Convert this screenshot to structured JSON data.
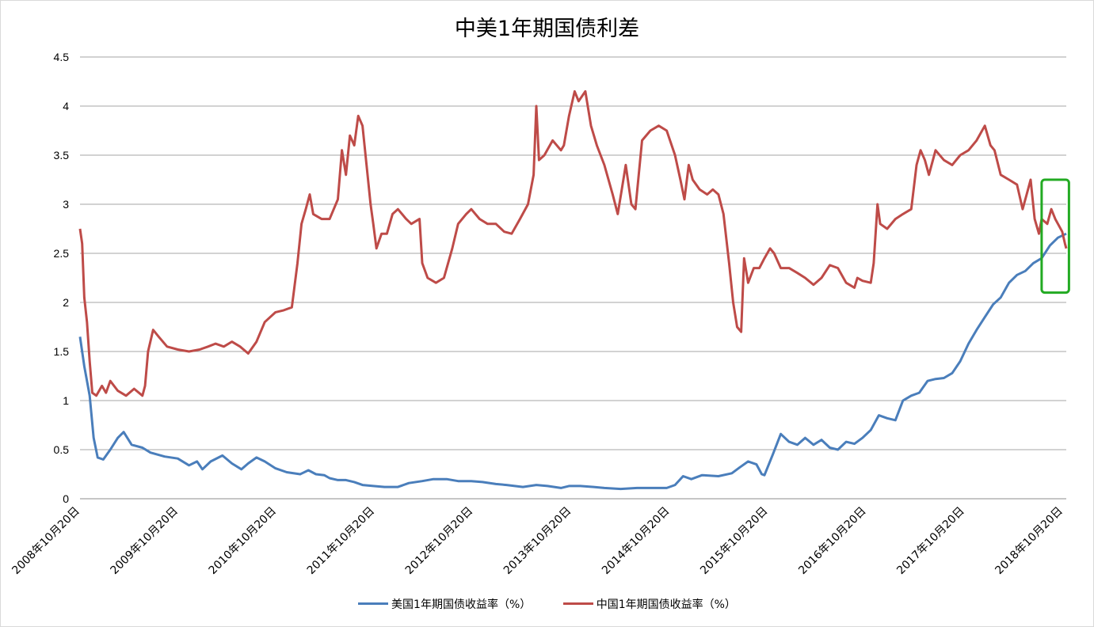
{
  "chart_data": {
    "type": "line",
    "title": "中美1年期国债利差",
    "xlabel": "",
    "ylabel": "",
    "ylim": [
      0,
      4.5
    ],
    "yticks": [
      "0",
      "0.5",
      "1",
      "1.5",
      "2",
      "2.5",
      "3",
      "3.5",
      "4",
      "4.5"
    ],
    "x_range": [
      "2008-10-20",
      "2018-11-20"
    ],
    "x_tick_labels": [
      "2008年10月20日",
      "2009年10月20日",
      "2010年10月20日",
      "2011年10月20日",
      "2012年10月20日",
      "2013年10月20日",
      "2014年10月20日",
      "2015年10月20日",
      "2016年10月20日",
      "2017年10月20日",
      "2018年10月20日"
    ],
    "grid": true,
    "legend_position": "bottom",
    "series": [
      {
        "name": "美国1年期国债收益率（%）",
        "color": "#4a7ebb",
        "points": [
          [
            "2008-10-20",
            1.65
          ],
          [
            "2008-11-05",
            1.35
          ],
          [
            "2008-11-25",
            1.05
          ],
          [
            "2008-12-10",
            0.62
          ],
          [
            "2008-12-25",
            0.42
          ],
          [
            "2009-01-15",
            0.4
          ],
          [
            "2009-02-10",
            0.5
          ],
          [
            "2009-03-10",
            0.62
          ],
          [
            "2009-04-01",
            0.68
          ],
          [
            "2009-05-01",
            0.55
          ],
          [
            "2009-06-10",
            0.52
          ],
          [
            "2009-07-10",
            0.47
          ],
          [
            "2009-09-01",
            0.43
          ],
          [
            "2009-10-20",
            0.41
          ],
          [
            "2009-12-01",
            0.34
          ],
          [
            "2009-12-31",
            0.38
          ],
          [
            "2010-01-20",
            0.3
          ],
          [
            "2010-02-20",
            0.38
          ],
          [
            "2010-04-05",
            0.44
          ],
          [
            "2010-05-10",
            0.36
          ],
          [
            "2010-06-15",
            0.3
          ],
          [
            "2010-07-10",
            0.36
          ],
          [
            "2010-08-10",
            0.42
          ],
          [
            "2010-09-10",
            0.38
          ],
          [
            "2010-10-20",
            0.31
          ],
          [
            "2010-12-01",
            0.27
          ],
          [
            "2011-01-20",
            0.25
          ],
          [
            "2011-02-20",
            0.29
          ],
          [
            "2011-03-20",
            0.25
          ],
          [
            "2011-04-20",
            0.24
          ],
          [
            "2011-05-10",
            0.21
          ],
          [
            "2011-06-10",
            0.19
          ],
          [
            "2011-07-10",
            0.19
          ],
          [
            "2011-08-10",
            0.17
          ],
          [
            "2011-09-10",
            0.14
          ],
          [
            "2011-10-20",
            0.13
          ],
          [
            "2011-12-01",
            0.12
          ],
          [
            "2012-01-20",
            0.12
          ],
          [
            "2012-03-01",
            0.16
          ],
          [
            "2012-04-20",
            0.18
          ],
          [
            "2012-06-01",
            0.2
          ],
          [
            "2012-07-20",
            0.2
          ],
          [
            "2012-09-01",
            0.18
          ],
          [
            "2012-10-20",
            0.18
          ],
          [
            "2012-12-01",
            0.17
          ],
          [
            "2013-01-20",
            0.15
          ],
          [
            "2013-03-01",
            0.14
          ],
          [
            "2013-05-01",
            0.12
          ],
          [
            "2013-06-20",
            0.14
          ],
          [
            "2013-08-01",
            0.13
          ],
          [
            "2013-09-20",
            0.11
          ],
          [
            "2013-10-20",
            0.13
          ],
          [
            "2013-12-01",
            0.13
          ],
          [
            "2014-01-20",
            0.12
          ],
          [
            "2014-03-01",
            0.11
          ],
          [
            "2014-05-01",
            0.1
          ],
          [
            "2014-07-01",
            0.11
          ],
          [
            "2014-09-01",
            0.11
          ],
          [
            "2014-10-20",
            0.11
          ],
          [
            "2014-11-20",
            0.14
          ],
          [
            "2014-12-20",
            0.23
          ],
          [
            "2015-01-20",
            0.2
          ],
          [
            "2015-03-01",
            0.24
          ],
          [
            "2015-05-01",
            0.23
          ],
          [
            "2015-06-20",
            0.26
          ],
          [
            "2015-07-20",
            0.32
          ],
          [
            "2015-08-20",
            0.38
          ],
          [
            "2015-09-20",
            0.35
          ],
          [
            "2015-10-10",
            0.25
          ],
          [
            "2015-10-20",
            0.24
          ],
          [
            "2015-11-20",
            0.45
          ],
          [
            "2015-12-20",
            0.66
          ],
          [
            "2016-01-20",
            0.58
          ],
          [
            "2016-02-20",
            0.55
          ],
          [
            "2016-03-20",
            0.62
          ],
          [
            "2016-04-20",
            0.55
          ],
          [
            "2016-05-20",
            0.6
          ],
          [
            "2016-06-20",
            0.52
          ],
          [
            "2016-07-20",
            0.5
          ],
          [
            "2016-08-20",
            0.58
          ],
          [
            "2016-09-20",
            0.56
          ],
          [
            "2016-10-20",
            0.62
          ],
          [
            "2016-11-20",
            0.7
          ],
          [
            "2016-12-20",
            0.85
          ],
          [
            "2017-01-20",
            0.82
          ],
          [
            "2017-02-20",
            0.8
          ],
          [
            "2017-03-20",
            1.0
          ],
          [
            "2017-04-20",
            1.05
          ],
          [
            "2017-05-20",
            1.08
          ],
          [
            "2017-06-20",
            1.2
          ],
          [
            "2017-07-20",
            1.22
          ],
          [
            "2017-08-20",
            1.23
          ],
          [
            "2017-09-20",
            1.28
          ],
          [
            "2017-10-20",
            1.4
          ],
          [
            "2017-11-20",
            1.58
          ],
          [
            "2017-12-20",
            1.72
          ],
          [
            "2018-01-20",
            1.85
          ],
          [
            "2018-02-20",
            1.98
          ],
          [
            "2018-03-20",
            2.05
          ],
          [
            "2018-04-20",
            2.2
          ],
          [
            "2018-05-20",
            2.28
          ],
          [
            "2018-06-20",
            2.32
          ],
          [
            "2018-07-20",
            2.4
          ],
          [
            "2018-08-20",
            2.45
          ],
          [
            "2018-09-20",
            2.58
          ],
          [
            "2018-10-20",
            2.66
          ],
          [
            "2018-11-20",
            2.7
          ]
        ]
      },
      {
        "name": "中国1年期国债收益率（%）",
        "color": "#be4b48",
        "points": [
          [
            "2008-10-20",
            2.75
          ],
          [
            "2008-10-28",
            2.6
          ],
          [
            "2008-11-05",
            2.05
          ],
          [
            "2008-11-15",
            1.8
          ],
          [
            "2008-11-25",
            1.4
          ],
          [
            "2008-12-05",
            1.08
          ],
          [
            "2008-12-20",
            1.05
          ],
          [
            "2009-01-10",
            1.15
          ],
          [
            "2009-01-25",
            1.08
          ],
          [
            "2009-02-10",
            1.2
          ],
          [
            "2009-03-10",
            1.1
          ],
          [
            "2009-04-10",
            1.05
          ],
          [
            "2009-05-10",
            1.12
          ],
          [
            "2009-06-10",
            1.05
          ],
          [
            "2009-06-20",
            1.15
          ],
          [
            "2009-07-01",
            1.5
          ],
          [
            "2009-07-20",
            1.72
          ],
          [
            "2009-08-10",
            1.65
          ],
          [
            "2009-09-10",
            1.55
          ],
          [
            "2009-10-20",
            1.52
          ],
          [
            "2009-12-01",
            1.5
          ],
          [
            "2010-01-10",
            1.52
          ],
          [
            "2010-02-10",
            1.55
          ],
          [
            "2010-03-10",
            1.58
          ],
          [
            "2010-04-10",
            1.55
          ],
          [
            "2010-05-10",
            1.6
          ],
          [
            "2010-06-10",
            1.55
          ],
          [
            "2010-07-10",
            1.48
          ],
          [
            "2010-08-10",
            1.6
          ],
          [
            "2010-09-10",
            1.8
          ],
          [
            "2010-10-20",
            1.9
          ],
          [
            "2010-11-20",
            1.92
          ],
          [
            "2010-12-20",
            1.95
          ],
          [
            "2011-01-10",
            2.4
          ],
          [
            "2011-01-25",
            2.8
          ],
          [
            "2011-02-10",
            2.95
          ],
          [
            "2011-02-25",
            3.1
          ],
          [
            "2011-03-10",
            2.9
          ],
          [
            "2011-04-10",
            2.85
          ],
          [
            "2011-05-10",
            2.85
          ],
          [
            "2011-06-10",
            3.05
          ],
          [
            "2011-06-25",
            3.55
          ],
          [
            "2011-07-10",
            3.3
          ],
          [
            "2011-07-25",
            3.7
          ],
          [
            "2011-08-10",
            3.6
          ],
          [
            "2011-08-25",
            3.9
          ],
          [
            "2011-09-10",
            3.8
          ],
          [
            "2011-09-25",
            3.4
          ],
          [
            "2011-10-10",
            3.0
          ],
          [
            "2011-10-20",
            2.8
          ],
          [
            "2011-11-01",
            2.55
          ],
          [
            "2011-11-20",
            2.7
          ],
          [
            "2011-12-10",
            2.7
          ],
          [
            "2011-12-31",
            2.9
          ],
          [
            "2012-01-20",
            2.95
          ],
          [
            "2012-02-20",
            2.85
          ],
          [
            "2012-03-10",
            2.8
          ],
          [
            "2012-04-10",
            2.85
          ],
          [
            "2012-04-20",
            2.4
          ],
          [
            "2012-05-10",
            2.25
          ],
          [
            "2012-06-10",
            2.2
          ],
          [
            "2012-07-10",
            2.25
          ],
          [
            "2012-08-10",
            2.55
          ],
          [
            "2012-09-01",
            2.8
          ],
          [
            "2012-10-01",
            2.9
          ],
          [
            "2012-10-20",
            2.95
          ],
          [
            "2012-11-20",
            2.85
          ],
          [
            "2012-12-20",
            2.8
          ],
          [
            "2013-01-20",
            2.8
          ],
          [
            "2013-02-20",
            2.72
          ],
          [
            "2013-03-20",
            2.7
          ],
          [
            "2013-04-20",
            2.85
          ],
          [
            "2013-05-20",
            3.0
          ],
          [
            "2013-06-10",
            3.3
          ],
          [
            "2013-06-20",
            4.0
          ],
          [
            "2013-06-30",
            3.45
          ],
          [
            "2013-07-20",
            3.5
          ],
          [
            "2013-08-20",
            3.65
          ],
          [
            "2013-09-20",
            3.55
          ],
          [
            "2013-10-01",
            3.6
          ],
          [
            "2013-10-20",
            3.9
          ],
          [
            "2013-11-10",
            4.15
          ],
          [
            "2013-11-25",
            4.05
          ],
          [
            "2013-12-20",
            4.15
          ],
          [
            "2014-01-10",
            3.8
          ],
          [
            "2014-02-01",
            3.6
          ],
          [
            "2014-03-01",
            3.4
          ],
          [
            "2014-04-01",
            3.1
          ],
          [
            "2014-04-20",
            2.9
          ],
          [
            "2014-05-05",
            3.15
          ],
          [
            "2014-05-20",
            3.4
          ],
          [
            "2014-06-10",
            3.0
          ],
          [
            "2014-06-25",
            2.95
          ],
          [
            "2014-07-20",
            3.65
          ],
          [
            "2014-08-20",
            3.75
          ],
          [
            "2014-09-20",
            3.8
          ],
          [
            "2014-10-20",
            3.75
          ],
          [
            "2014-11-20",
            3.5
          ],
          [
            "2014-12-10",
            3.25
          ],
          [
            "2014-12-25",
            3.05
          ],
          [
            "2015-01-10",
            3.4
          ],
          [
            "2015-01-25",
            3.25
          ],
          [
            "2015-02-20",
            3.15
          ],
          [
            "2015-03-20",
            3.1
          ],
          [
            "2015-04-10",
            3.15
          ],
          [
            "2015-05-01",
            3.1
          ],
          [
            "2015-05-20",
            2.9
          ],
          [
            "2015-06-10",
            2.4
          ],
          [
            "2015-06-25",
            2.0
          ],
          [
            "2015-07-10",
            1.75
          ],
          [
            "2015-07-25",
            1.7
          ],
          [
            "2015-08-05",
            2.45
          ],
          [
            "2015-08-20",
            2.2
          ],
          [
            "2015-09-10",
            2.35
          ],
          [
            "2015-10-01",
            2.35
          ],
          [
            "2015-10-20",
            2.45
          ],
          [
            "2015-11-10",
            2.55
          ],
          [
            "2015-11-25",
            2.5
          ],
          [
            "2015-12-20",
            2.35
          ],
          [
            "2016-01-20",
            2.35
          ],
          [
            "2016-02-20",
            2.3
          ],
          [
            "2016-03-20",
            2.25
          ],
          [
            "2016-04-20",
            2.18
          ],
          [
            "2016-05-20",
            2.25
          ],
          [
            "2016-06-20",
            2.38
          ],
          [
            "2016-07-20",
            2.35
          ],
          [
            "2016-08-20",
            2.2
          ],
          [
            "2016-09-20",
            2.15
          ],
          [
            "2016-10-01",
            2.25
          ],
          [
            "2016-10-20",
            2.22
          ],
          [
            "2016-11-20",
            2.2
          ],
          [
            "2016-12-01",
            2.4
          ],
          [
            "2016-12-15",
            3.0
          ],
          [
            "2016-12-25",
            2.8
          ],
          [
            "2017-01-20",
            2.75
          ],
          [
            "2017-02-20",
            2.85
          ],
          [
            "2017-03-20",
            2.9
          ],
          [
            "2017-04-20",
            2.95
          ],
          [
            "2017-05-10",
            3.4
          ],
          [
            "2017-05-25",
            3.55
          ],
          [
            "2017-06-10",
            3.45
          ],
          [
            "2017-06-25",
            3.3
          ],
          [
            "2017-07-20",
            3.55
          ],
          [
            "2017-08-20",
            3.45
          ],
          [
            "2017-09-20",
            3.4
          ],
          [
            "2017-10-20",
            3.5
          ],
          [
            "2017-11-20",
            3.55
          ],
          [
            "2017-12-20",
            3.65
          ],
          [
            "2018-01-20",
            3.8
          ],
          [
            "2018-02-10",
            3.6
          ],
          [
            "2018-02-25",
            3.55
          ],
          [
            "2018-03-20",
            3.3
          ],
          [
            "2018-04-20",
            3.25
          ],
          [
            "2018-05-20",
            3.2
          ],
          [
            "2018-06-10",
            2.95
          ],
          [
            "2018-06-25",
            3.1
          ],
          [
            "2018-07-10",
            3.25
          ],
          [
            "2018-07-25",
            2.85
          ],
          [
            "2018-08-10",
            2.7
          ],
          [
            "2018-08-20",
            2.85
          ],
          [
            "2018-09-10",
            2.8
          ],
          [
            "2018-09-25",
            2.95
          ],
          [
            "2018-10-10",
            2.85
          ],
          [
            "2018-10-20",
            2.8
          ],
          [
            "2018-11-05",
            2.72
          ],
          [
            "2018-11-15",
            2.6
          ],
          [
            "2018-11-20",
            2.55
          ]
        ]
      }
    ],
    "annotations": [
      {
        "type": "box",
        "color": "#22aa22",
        "x_start": "2018-08-20",
        "x_end": "2018-11-30",
        "y_low": 2.1,
        "y_high": 3.25
      }
    ]
  }
}
